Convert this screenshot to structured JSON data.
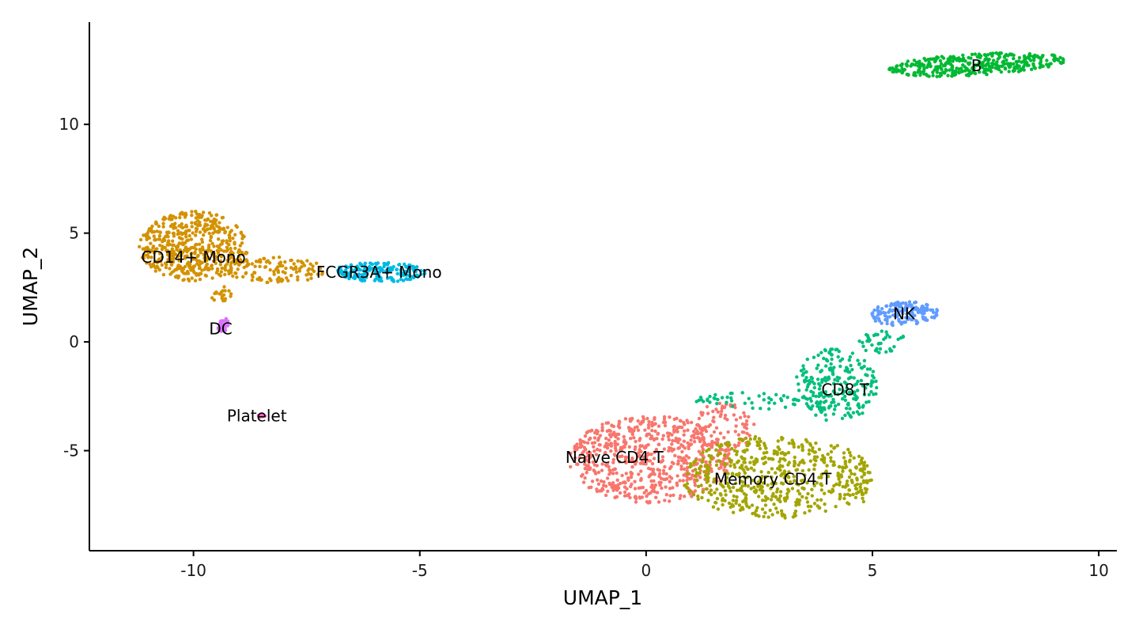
{
  "chart_data": {
    "type": "scatter",
    "title": "",
    "xlabel": "UMAP_1",
    "ylabel": "UMAP_2",
    "xlim": [
      -12.3,
      10.4
    ],
    "ylim": [
      -9.6,
      14.7
    ],
    "xticks": [
      -10,
      -5,
      0,
      5,
      10
    ],
    "yticks": [
      -5,
      0,
      5,
      10
    ],
    "grid": false,
    "legend": "none",
    "series": [
      {
        "name": "Naive CD4 T",
        "color": "#F8766D",
        "label_position": [
          -0.7,
          -5.3
        ],
        "clusters": [
          {
            "cx": 0.1,
            "cy": -5.4,
            "rx": 1.8,
            "ry": 2.0,
            "count": 620,
            "angle": 0
          },
          {
            "cx": 1.7,
            "cy": -3.9,
            "rx": 0.7,
            "ry": 1.1,
            "count": 90,
            "angle": 0
          }
        ]
      },
      {
        "name": "Memory CD4 T",
        "color": "#A3A500",
        "label_position": [
          2.8,
          -6.3
        ],
        "clusters": [
          {
            "cx": 2.9,
            "cy": -6.2,
            "rx": 2.1,
            "ry": 1.9,
            "count": 540,
            "angle": 0
          },
          {
            "cx": 4.6,
            "cy": -6.5,
            "rx": 0.4,
            "ry": 1.0,
            "count": 40,
            "angle": 0
          }
        ]
      },
      {
        "name": "CD8 T",
        "color": "#00BF7D",
        "label_position": [
          4.4,
          -2.2
        ],
        "clusters": [
          {
            "cx": 4.2,
            "cy": -2.0,
            "rx": 0.9,
            "ry": 1.7,
            "count": 230,
            "angle": 0
          },
          {
            "cx": 2.4,
            "cy": -2.7,
            "rx": 1.3,
            "ry": 0.4,
            "count": 50,
            "angle": 0
          },
          {
            "cx": 5.2,
            "cy": 0.0,
            "rx": 0.6,
            "ry": 0.5,
            "count": 40,
            "angle": 0
          }
        ]
      },
      {
        "name": "NK",
        "color": "#619CFF",
        "label_position": [
          5.7,
          1.3
        ],
        "clusters": [
          {
            "cx": 5.7,
            "cy": 1.3,
            "rx": 0.75,
            "ry": 0.55,
            "count": 150,
            "angle": 10
          }
        ]
      },
      {
        "name": "B",
        "color": "#00B933",
        "label_position": [
          7.3,
          12.7
        ],
        "clusters": [
          {
            "cx": 7.3,
            "cy": 12.75,
            "rx": 2.0,
            "ry": 0.5,
            "count": 360,
            "angle": 7
          }
        ]
      },
      {
        "name": "CD14+ Mono",
        "color": "#D39200",
        "label_position": [
          -10.0,
          3.9
        ],
        "clusters": [
          {
            "cx": -10.0,
            "cy": 4.4,
            "rx": 1.2,
            "ry": 1.6,
            "count": 520,
            "angle": 0
          },
          {
            "cx": -8.2,
            "cy": 3.3,
            "rx": 1.1,
            "ry": 0.6,
            "count": 120,
            "angle": 0
          },
          {
            "cx": -9.4,
            "cy": 2.2,
            "rx": 0.3,
            "ry": 0.35,
            "count": 20,
            "angle": 0
          }
        ]
      },
      {
        "name": "FCGR3A+ Mono",
        "color": "#00B9E3",
        "label_position": [
          -5.9,
          3.2
        ],
        "clusters": [
          {
            "cx": -5.9,
            "cy": 3.2,
            "rx": 1.05,
            "ry": 0.45,
            "count": 180,
            "angle": 0
          }
        ]
      },
      {
        "name": "DC",
        "color": "#DB72FB",
        "label_position": [
          -9.4,
          0.6
        ],
        "clusters": [
          {
            "cx": -9.35,
            "cy": 0.8,
            "rx": 0.12,
            "ry": 0.35,
            "count": 32,
            "angle": 0
          }
        ]
      },
      {
        "name": "Platelet",
        "color": "#FF61C3",
        "label_position": [
          -8.6,
          -3.4
        ],
        "clusters": [
          {
            "cx": -8.5,
            "cy": -3.4,
            "rx": 0.08,
            "ry": 0.06,
            "count": 12,
            "angle": 0
          }
        ]
      }
    ]
  }
}
